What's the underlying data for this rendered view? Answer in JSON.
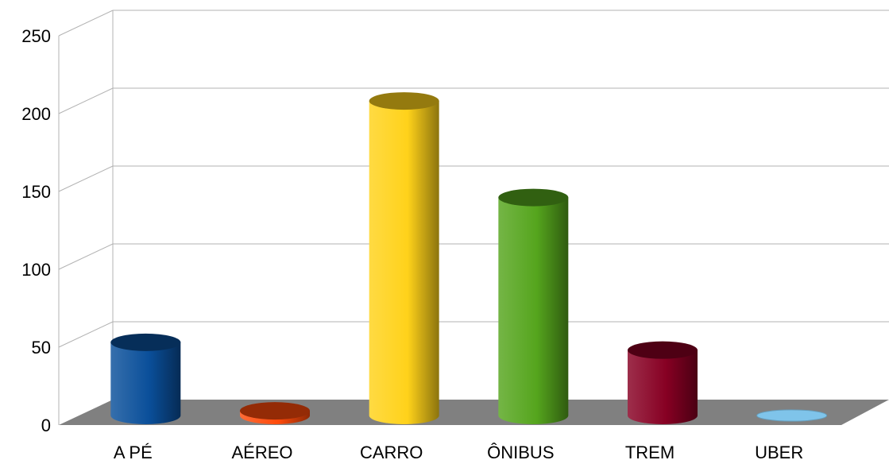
{
  "chart_data": {
    "type": "bar",
    "style": "3d-cylinder",
    "categories": [
      "A PÉ",
      "AÉREO",
      "CARRO",
      "ÔNIBUS",
      "TREM",
      "UBER"
    ],
    "values": [
      47,
      3,
      202,
      140,
      42,
      0
    ],
    "colors": [
      "#0a4f9a",
      "#ff4a0a",
      "#ffd21a",
      "#55a51d",
      "#870023",
      "#7fc4ea"
    ],
    "ylim": [
      0,
      250
    ],
    "yticks": [
      "0",
      "50",
      "100",
      "150",
      "200",
      "250"
    ],
    "grid": true,
    "floor_color": "#808080"
  }
}
